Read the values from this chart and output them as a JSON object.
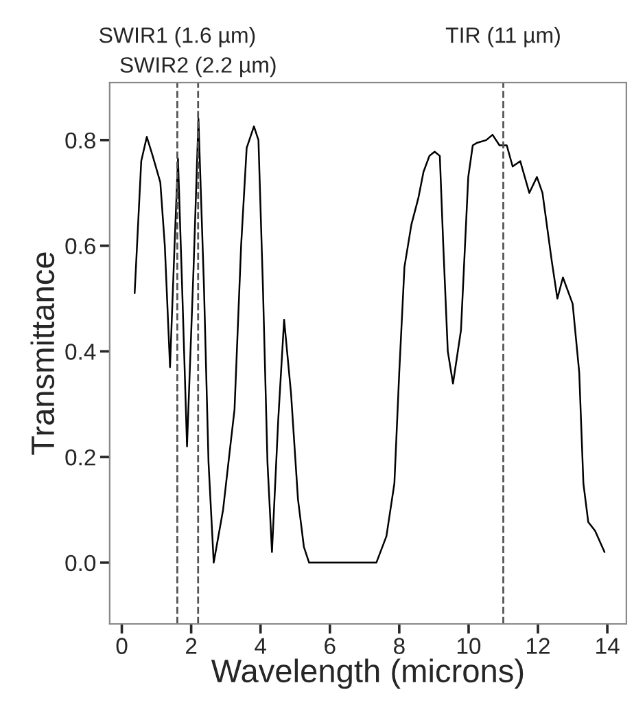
{
  "chart_data": {
    "type": "line",
    "xlabel": "Wavelength (microns)",
    "ylabel": "Transmittance",
    "xlim": [
      -0.35,
      14.55
    ],
    "ylim": [
      -0.116,
      0.909
    ],
    "xticks": [
      0,
      2,
      4,
      6,
      8,
      10,
      12,
      14
    ],
    "yticks": [
      {
        "value": 0,
        "label": "0.0"
      },
      0.2,
      0.4,
      0.6,
      0.8
    ],
    "grid": false,
    "marker": "none",
    "line_style": "solid",
    "ref_lines": [
      {
        "axis": "x",
        "value": 1.6,
        "label": "SWIR1 (1.6 µm)",
        "color": "#555555",
        "line_style": "dashed"
      },
      {
        "axis": "x",
        "value": 2.2,
        "label": "SWIR2 (2.2 µm)",
        "color": "#555555",
        "line_style": "dashed"
      },
      {
        "axis": "x",
        "value": 11,
        "label": "TIR (11 µm)",
        "color": "#555555",
        "line_style": "dashed"
      }
    ],
    "series": [
      {
        "color": "#000000",
        "x": [
          0.37,
          0.56,
          0.72,
          0.89,
          1.11,
          1.24,
          1.39,
          1.52,
          1.62,
          1.74,
          1.88,
          2.07,
          2.21,
          2.37,
          2.5,
          2.65,
          2.92,
          3.11,
          3.25,
          3.44,
          3.6,
          3.81,
          3.94,
          4.07,
          4.2,
          4.33,
          4.51,
          4.68,
          4.88,
          5.08,
          5.25,
          5.4,
          7.34,
          7.63,
          7.86,
          8.0,
          8.15,
          8.35,
          8.55,
          8.7,
          8.87,
          9.02,
          9.17,
          9.27,
          9.4,
          9.55,
          9.78,
          9.99,
          10.12,
          10.25,
          10.51,
          10.69,
          10.89,
          11.03,
          11.1,
          11.27,
          11.49,
          11.75,
          11.97,
          12.13,
          12.4,
          12.56,
          12.72,
          13.0,
          13.19,
          13.31,
          13.45,
          13.65,
          13.92
        ],
        "values": [
          0.51,
          0.76,
          0.806,
          0.77,
          0.72,
          0.6,
          0.37,
          0.6,
          0.765,
          0.52,
          0.22,
          0.56,
          0.84,
          0.52,
          0.19,
          0.0,
          0.1,
          0.21,
          0.29,
          0.6,
          0.785,
          0.826,
          0.8,
          0.52,
          0.19,
          0.02,
          0.27,
          0.46,
          0.32,
          0.12,
          0.03,
          0.0,
          0.0,
          0.05,
          0.15,
          0.36,
          0.56,
          0.64,
          0.69,
          0.74,
          0.77,
          0.778,
          0.77,
          0.6,
          0.4,
          0.339,
          0.44,
          0.73,
          0.79,
          0.795,
          0.8,
          0.81,
          0.79,
          0.79,
          0.79,
          0.75,
          0.76,
          0.7,
          0.73,
          0.7,
          0.57,
          0.5,
          0.54,
          0.49,
          0.36,
          0.15,
          0.077,
          0.06,
          0.02
        ]
      }
    ]
  }
}
